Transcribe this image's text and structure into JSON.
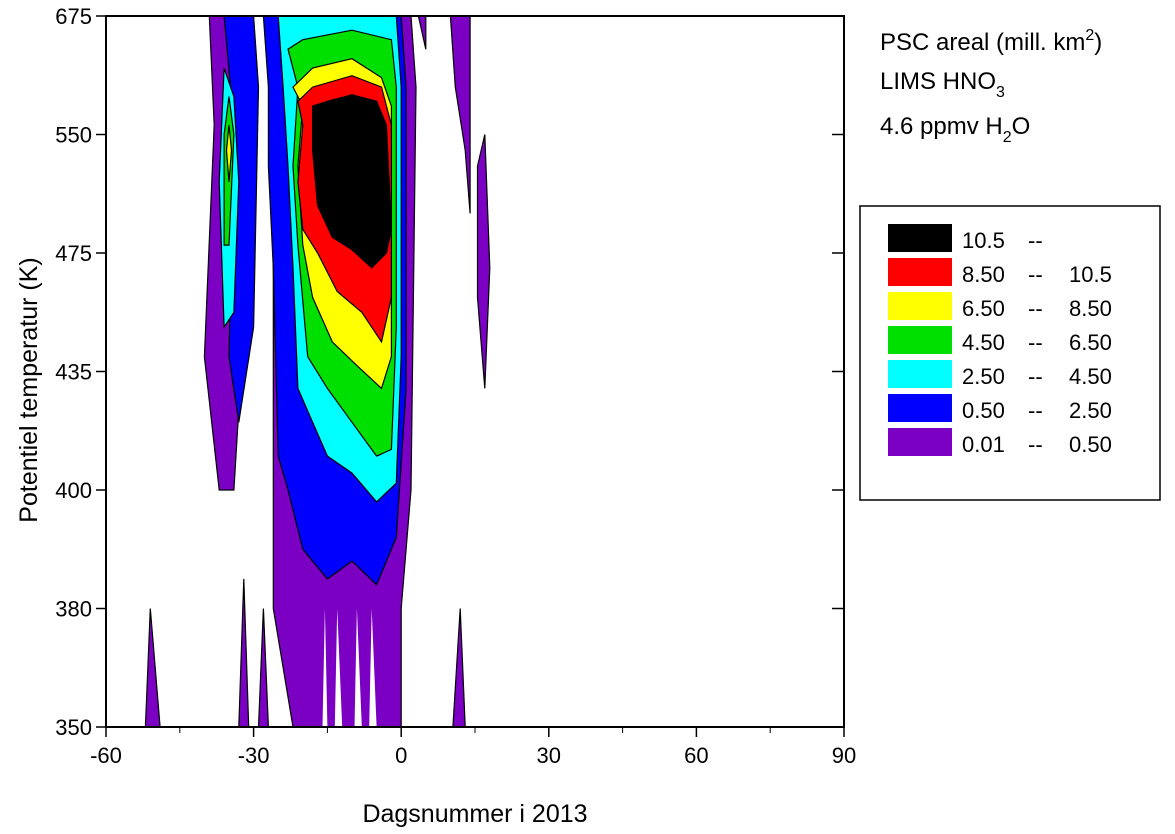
{
  "chart_data": {
    "type": "contour",
    "xlabel": "Dagsnummer i 2013",
    "ylabel": "Potentiel temperatur (K)",
    "xlim": [
      -60,
      90
    ],
    "x_ticks": [
      "-60",
      "-30",
      "0",
      "30",
      "60",
      "90"
    ],
    "y_ticks": [
      "350",
      "380",
      "400",
      "435",
      "475",
      "550",
      "675"
    ],
    "annotations": {
      "line1": {
        "main": "PSC areal (mill. km",
        "sup": "2",
        "end": ")"
      },
      "line2": {
        "main": "LIMS HNO",
        "sub": "3"
      },
      "line3": {
        "main": "4.6 ppmv H",
        "sub": "2",
        "end": "O"
      }
    },
    "legend": [
      {
        "from": "10.5",
        "sep": "--",
        "to": "",
        "color": "#000000"
      },
      {
        "from": "8.50",
        "sep": "--",
        "to": "10.5",
        "color": "#ff0000"
      },
      {
        "from": "6.50",
        "sep": "--",
        "to": "8.50",
        "color": "#ffff00"
      },
      {
        "from": "4.50",
        "sep": "--",
        "to": "6.50",
        "color": "#00e000"
      },
      {
        "from": "2.50",
        "sep": "--",
        "to": "4.50",
        "color": "#00ffff"
      },
      {
        "from": "0.50",
        "sep": "--",
        "to": "2.50",
        "color": "#0000ff"
      },
      {
        "from": "0.01",
        "sep": "--",
        "to": "0.50",
        "color": "#7b00c4"
      }
    ],
    "levels": [
      {
        "name": "0.01",
        "color": "#7b00c4",
        "regions": [
          [
            [
              -38,
              675
            ],
            [
              -25,
              675
            ],
            [
              -25,
              640
            ],
            [
              -20,
              600
            ],
            [
              -22,
              550
            ],
            [
              -26,
              520
            ],
            [
              -26,
              380
            ],
            [
              -22,
              350
            ],
            [
              0,
              350
            ],
            [
              0,
              380
            ],
            [
              2,
              400
            ],
            [
              3,
              600
            ],
            [
              2,
              675
            ],
            [
              -38,
              675
            ]
          ],
          [
            [
              -39,
              675
            ],
            [
              -38,
              560
            ],
            [
              -40,
              440
            ],
            [
              -37,
              400
            ],
            [
              -34,
              400
            ],
            [
              -32,
              450
            ],
            [
              -30,
              600
            ],
            [
              -31,
              675
            ]
          ],
          [
            [
              -52,
              350
            ],
            [
              -51,
              380
            ],
            [
              -49,
              350
            ]
          ],
          [
            [
              -33,
              350
            ],
            [
              -32,
              385
            ],
            [
              -31,
              350
            ]
          ],
          [
            [
              -29,
              350
            ],
            [
              -28,
              380
            ],
            [
              -27,
              350
            ]
          ],
          [
            [
              10.5,
              350
            ],
            [
              12,
              380
            ],
            [
              13,
              350
            ]
          ],
          [
            [
              10,
              675
            ],
            [
              11,
              600
            ],
            [
              13,
              540
            ],
            [
              14,
              500
            ],
            [
              14,
              675
            ]
          ],
          [
            [
              15.5,
              530
            ],
            [
              17,
              550
            ],
            [
              18,
              470
            ],
            [
              17,
              430
            ],
            [
              15.5,
              460
            ]
          ],
          [
            [
              3.5,
              675
            ],
            [
              5,
              640
            ],
            [
              5,
              675
            ]
          ]
        ]
      },
      {
        "name": "0.50",
        "color": "#0000ff",
        "regions": [
          [
            [
              -36,
              675
            ],
            [
              -34,
              560
            ],
            [
              -35,
              440
            ],
            [
              -33,
              420
            ],
            [
              -30,
              450
            ],
            [
              -29,
              600
            ],
            [
              -30,
              675
            ]
          ],
          [
            [
              -28,
              675
            ],
            [
              -27,
              600
            ],
            [
              -27,
              530
            ],
            [
              -26,
              470
            ],
            [
              -25,
              410
            ],
            [
              -23,
              400
            ],
            [
              -20,
              390
            ],
            [
              -15,
              385
            ],
            [
              -10,
              388
            ],
            [
              -5,
              384
            ],
            [
              -1,
              392
            ],
            [
              1,
              430
            ],
            [
              1,
              600
            ],
            [
              0,
              675
            ],
            [
              -28,
              675
            ]
          ]
        ]
      },
      {
        "name": "2.50",
        "color": "#00ffff",
        "regions": [
          [
            [
              -36,
              620
            ],
            [
              -34,
              590
            ],
            [
              -33,
              520
            ],
            [
              -34,
              455
            ],
            [
              -36,
              450
            ],
            [
              -37,
              520
            ]
          ],
          [
            [
              -25,
              675
            ],
            [
              -24,
              600
            ],
            [
              -23,
              530
            ],
            [
              -22,
              470
            ],
            [
              -21,
              430
            ],
            [
              -18,
              420
            ],
            [
              -15,
              410
            ],
            [
              -10,
              405
            ],
            [
              -5,
              398
            ],
            [
              -1,
              402
            ],
            [
              0,
              440
            ],
            [
              0,
              600
            ],
            [
              -1,
              675
            ],
            [
              -25,
              675
            ]
          ]
        ]
      },
      {
        "name": "4.50",
        "color": "#00e000",
        "regions": [
          [
            [
              -35,
              590
            ],
            [
              -34,
              550
            ],
            [
              -35,
              480
            ],
            [
              -36,
              480
            ],
            [
              -36,
              550
            ]
          ],
          [
            [
              -23,
              640
            ],
            [
              -21,
              600
            ],
            [
              -22,
              530
            ],
            [
              -21,
              480
            ],
            [
              -19,
              440
            ],
            [
              -15,
              430
            ],
            [
              -10,
              420
            ],
            [
              -5,
              410
            ],
            [
              -2,
              412
            ],
            [
              -1,
              450
            ],
            [
              -1,
              600
            ],
            [
              -2,
              650
            ],
            [
              -10,
              660
            ],
            [
              -20,
              650
            ]
          ]
        ]
      },
      {
        "name": "6.50",
        "color": "#ffff00",
        "regions": [
          [
            [
              -35,
              560
            ],
            [
              -34.5,
              540
            ],
            [
              -35,
              520
            ],
            [
              -35.5,
              540
            ]
          ],
          [
            [
              -22,
              600
            ],
            [
              -20,
              580
            ],
            [
              -21,
              530
            ],
            [
              -20,
              480
            ],
            [
              -18,
              460
            ],
            [
              -14,
              445
            ],
            [
              -9,
              437
            ],
            [
              -4,
              430
            ],
            [
              -2,
              440
            ],
            [
              -2,
              580
            ],
            [
              -4,
              610
            ],
            [
              -10,
              630
            ],
            [
              -18,
              620
            ]
          ]
        ]
      },
      {
        "name": "8.50",
        "color": "#ff0000",
        "regions": [
          [
            [
              -21,
              585
            ],
            [
              -20,
              560
            ],
            [
              -21,
              520
            ],
            [
              -20,
              490
            ],
            [
              -17,
              475
            ],
            [
              -13,
              462
            ],
            [
              -8,
              455
            ],
            [
              -4,
              445
            ],
            [
              -2,
              460
            ],
            [
              -2,
              560
            ],
            [
              -4,
              600
            ],
            [
              -10,
              612
            ],
            [
              -18,
              600
            ]
          ]
        ]
      },
      {
        "name": "10.5",
        "color": "#000000",
        "regions": [
          [
            [
              -18,
              580
            ],
            [
              -18,
              540
            ],
            [
              -17,
              505
            ],
            [
              -14,
              485
            ],
            [
              -10,
              477
            ],
            [
              -6,
              470
            ],
            [
              -3,
              475
            ],
            [
              -2,
              490
            ],
            [
              -3,
              560
            ],
            [
              -5,
              585
            ],
            [
              -10,
              592
            ],
            [
              -15,
              585
            ]
          ]
        ]
      }
    ],
    "gaps": [
      [
        [
          -16,
          350
        ],
        [
          -15.5,
          380
        ],
        [
          -15,
          350
        ]
      ],
      [
        [
          -13.5,
          350
        ],
        [
          -13,
          380
        ],
        [
          -12,
          350
        ]
      ],
      [
        [
          -9.5,
          350
        ],
        [
          -9,
          380
        ],
        [
          -8,
          350
        ]
      ],
      [
        [
          -6.5,
          350
        ],
        [
          -6,
          380
        ],
        [
          -5,
          350
        ]
      ]
    ]
  }
}
